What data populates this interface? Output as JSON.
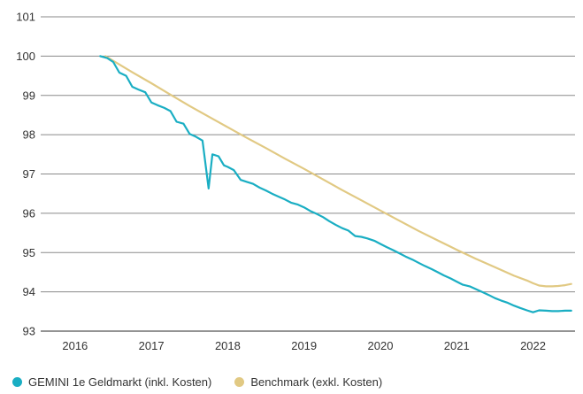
{
  "chart_data": {
    "type": "line",
    "title": "",
    "xlabel": "",
    "ylabel": "",
    "xlim": [
      2015.55,
      2022.55
    ],
    "ylim": [
      93,
      101
    ],
    "x_ticks": [
      2016,
      2017,
      2018,
      2019,
      2020,
      2021,
      2022
    ],
    "x_tick_labels": [
      "2016",
      "2017",
      "2018",
      "2019",
      "2020",
      "2021",
      "2022"
    ],
    "y_ticks": [
      93,
      94,
      95,
      96,
      97,
      98,
      99,
      100,
      101
    ],
    "y_tick_labels": [
      "93",
      "94",
      "95",
      "96",
      "97",
      "98",
      "99",
      "100",
      "101"
    ],
    "grid": "horizontal",
    "legend_position": "bottom",
    "series": [
      {
        "name": "GEMINI 1e Geldmarkt (inkl. Kosten)",
        "color": "#1aaec3",
        "x": [
          2016.33,
          2016.42,
          2016.5,
          2016.58,
          2016.67,
          2016.75,
          2016.83,
          2016.92,
          2017.0,
          2017.08,
          2017.17,
          2017.25,
          2017.33,
          2017.42,
          2017.5,
          2017.58,
          2017.67,
          2017.75,
          2017.8,
          2017.88,
          2017.95,
          2018.0,
          2018.08,
          2018.17,
          2018.25,
          2018.33,
          2018.42,
          2018.5,
          2018.58,
          2018.67,
          2018.75,
          2018.83,
          2018.92,
          2019.0,
          2019.08,
          2019.17,
          2019.25,
          2019.33,
          2019.42,
          2019.5,
          2019.58,
          2019.67,
          2019.75,
          2019.83,
          2019.92,
          2020.0,
          2020.08,
          2020.17,
          2020.25,
          2020.33,
          2020.42,
          2020.5,
          2020.58,
          2020.67,
          2020.75,
          2020.83,
          2020.92,
          2021.0,
          2021.08,
          2021.17,
          2021.25,
          2021.33,
          2021.42,
          2021.5,
          2021.58,
          2021.67,
          2021.75,
          2021.83,
          2021.92,
          2022.0,
          2022.08,
          2022.17,
          2022.25,
          2022.33,
          2022.42,
          2022.5
        ],
        "values": [
          100.0,
          99.95,
          99.85,
          99.58,
          99.5,
          99.22,
          99.15,
          99.08,
          98.82,
          98.75,
          98.68,
          98.6,
          98.33,
          98.28,
          98.02,
          97.95,
          97.85,
          96.63,
          97.5,
          97.45,
          97.22,
          97.18,
          97.1,
          96.85,
          96.8,
          96.75,
          96.65,
          96.58,
          96.5,
          96.42,
          96.35,
          96.27,
          96.22,
          96.15,
          96.06,
          95.98,
          95.9,
          95.8,
          95.7,
          95.62,
          95.56,
          95.42,
          95.4,
          95.36,
          95.3,
          95.22,
          95.14,
          95.06,
          94.98,
          94.9,
          94.82,
          94.74,
          94.66,
          94.58,
          94.5,
          94.42,
          94.34,
          94.26,
          94.18,
          94.14,
          94.07,
          94.0,
          93.92,
          93.84,
          93.78,
          93.72,
          93.65,
          93.59,
          93.53,
          93.48,
          93.53,
          93.52,
          93.51,
          93.51,
          93.52,
          93.52
        ]
      },
      {
        "name": "Benchmark (exkl. Kosten)",
        "color": "#e1c983",
        "x": [
          2016.4,
          2016.5,
          2016.75,
          2017.0,
          2017.25,
          2017.5,
          2017.75,
          2018.0,
          2018.25,
          2018.5,
          2018.75,
          2019.0,
          2019.25,
          2019.5,
          2019.75,
          2020.0,
          2020.25,
          2020.5,
          2020.75,
          2021.0,
          2021.25,
          2021.5,
          2021.75,
          2021.92,
          2022.0,
          2022.08,
          2022.17,
          2022.25,
          2022.33,
          2022.42,
          2022.5
        ],
        "values": [
          100.0,
          99.88,
          99.59,
          99.31,
          99.02,
          98.73,
          98.46,
          98.19,
          97.92,
          97.66,
          97.39,
          97.13,
          96.86,
          96.59,
          96.33,
          96.07,
          95.81,
          95.55,
          95.31,
          95.07,
          94.84,
          94.63,
          94.41,
          94.29,
          94.22,
          94.16,
          94.14,
          94.14,
          94.15,
          94.17,
          94.2
        ]
      }
    ]
  },
  "legend": {
    "items": [
      {
        "label": "GEMINI 1e Geldmarkt (inkl. Kosten)",
        "color": "#1aaec3"
      },
      {
        "label": "Benchmark (exkl. Kosten)",
        "color": "#e1c983"
      }
    ]
  }
}
